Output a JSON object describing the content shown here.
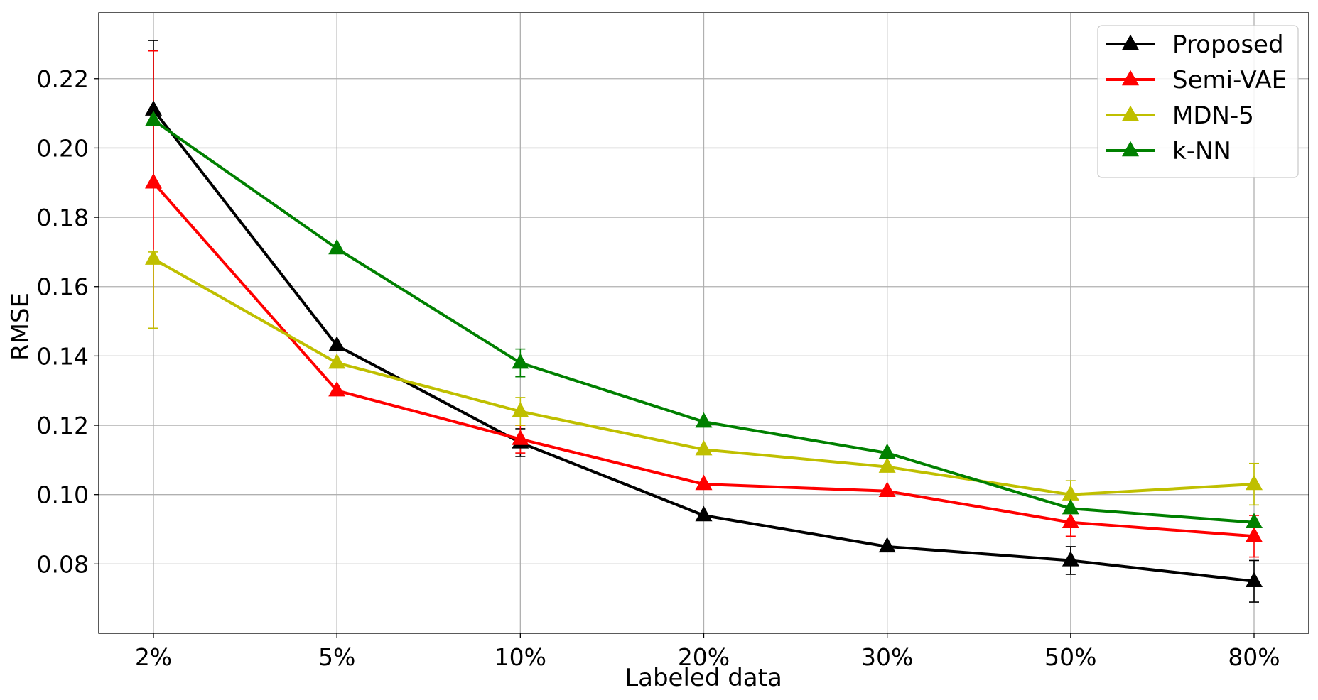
{
  "chart_data": {
    "type": "line",
    "title": "",
    "xlabel": "Labeled data",
    "ylabel": "RMSE",
    "categories": [
      "2%",
      "5%",
      "10%",
      "20%",
      "30%",
      "50%",
      "80%"
    ],
    "ylim": [
      0.06,
      0.239
    ],
    "yticks": [
      0.08,
      0.1,
      0.12,
      0.14,
      0.16,
      0.18,
      0.2,
      0.22
    ],
    "ytick_labels": [
      "0.08",
      "0.10",
      "0.12",
      "0.14",
      "0.16",
      "0.18",
      "0.20",
      "0.22"
    ],
    "grid": true,
    "marker": "triangle-up",
    "legend": {
      "position": "top-right"
    },
    "series": [
      {
        "name": "Proposed",
        "color": "#000000",
        "values": [
          0.211,
          0.143,
          0.115,
          0.094,
          0.085,
          0.081,
          0.075
        ],
        "error_low": [
          0.19,
          null,
          0.111,
          null,
          null,
          0.077,
          0.069
        ],
        "error_high": [
          0.231,
          null,
          0.119,
          null,
          null,
          0.085,
          0.081
        ]
      },
      {
        "name": "Semi-VAE",
        "color": "#ff0000",
        "values": [
          0.19,
          0.13,
          0.116,
          0.103,
          0.101,
          0.092,
          0.088
        ],
        "error_low": [
          0.148,
          null,
          0.112,
          null,
          null,
          0.088,
          0.082
        ],
        "error_high": [
          0.228,
          null,
          0.12,
          null,
          null,
          0.096,
          0.094
        ]
      },
      {
        "name": "MDN-5",
        "color": "#bfbf00",
        "values": [
          0.168,
          0.138,
          0.124,
          0.113,
          0.108,
          0.1,
          0.103
        ],
        "error_low": [
          0.148,
          null,
          0.12,
          null,
          null,
          0.096,
          0.097
        ],
        "error_high": [
          0.17,
          null,
          0.128,
          null,
          null,
          0.104,
          0.109
        ]
      },
      {
        "name": "k-NN",
        "color": "#008000",
        "values": [
          0.208,
          0.171,
          0.138,
          0.121,
          0.112,
          0.096,
          0.092
        ],
        "error_low": [
          null,
          null,
          0.134,
          null,
          null,
          null,
          null
        ],
        "error_high": [
          null,
          null,
          0.142,
          null,
          null,
          null,
          null
        ]
      }
    ]
  }
}
